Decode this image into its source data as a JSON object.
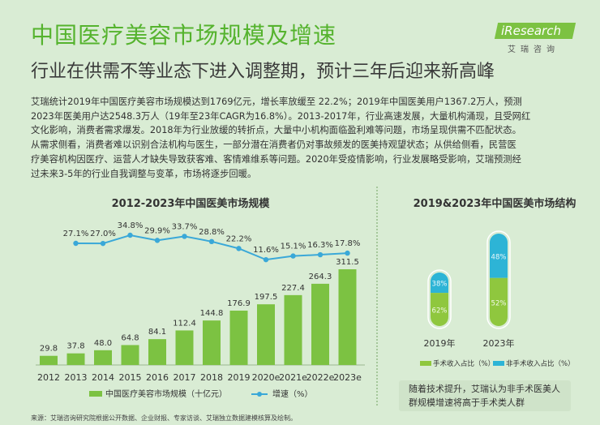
{
  "header": {
    "title": "中国医疗美容市场规模及增速",
    "subtitle": "行业在供需不等业态下进入调整期，预计三年后迎来新高峰",
    "logo_text": "iResearch",
    "logo_cn": "艾瑞咨询"
  },
  "description": [
    "艾瑞统计2019年中国医疗美容市场规模达到1769亿元，增长率放缓至 22.2%；2019年中国医美用户1367.2万人，预测",
    "2023年医美用户达2548.3万人（19年至23年CAGR为16.8%）。2013-2017年，行业高速发展，大量机构涌现，且受网红",
    "文化影响，消费者需求爆发。2018年为行业放缓的转折点，大量中小机构面临盈利难等问题，市场呈现供需不匹配状态。",
    "从需求侧看，消费者难以识别合法机构与医生，一部分潜在消费者仍对事故频发的医美持观望状态；从供给侧看，民营医",
    "疗美容机构因医疗、运营人才缺失导致获客难、客情难维系等问题。2020年受疫情影响，行业发展略受影响，艾瑞预测经",
    "过未来3-5年的行业自我调整与变革，市场将逐步回暖。"
  ],
  "colors": {
    "title": "#55b32e",
    "bar": "#7cc242",
    "line": "#3aa8d8",
    "surgical": "#8fc73e",
    "non_surgical": "#2db4d6",
    "background": "#d9ecd4"
  },
  "chart_data": [
    {
      "type": "bar",
      "title": "2012-2023年中国医美市场规模",
      "categories": [
        "2012",
        "2013",
        "2014",
        "2015",
        "2016",
        "2017",
        "2018",
        "2019",
        "2020e",
        "2021e",
        "2022e",
        "2023e"
      ],
      "series": [
        {
          "name": "中国医疗美容市场规模（十亿元）",
          "type": "bar",
          "values": [
            29.8,
            37.8,
            48.0,
            64.8,
            84.1,
            112.4,
            144.8,
            176.9,
            197.5,
            227.4,
            264.3,
            311.5
          ]
        },
        {
          "name": "增速（%）",
          "type": "line",
          "values": [
            null,
            27.1,
            27.0,
            34.8,
            29.9,
            33.7,
            28.8,
            22.2,
            11.6,
            15.1,
            16.3,
            17.8
          ]
        }
      ],
      "value_labels": [
        "29.8",
        "37.8",
        "48.0",
        "64.8",
        "84.1",
        "112.4",
        "144.8",
        "176.9",
        "197.5",
        "227.4",
        "264.3",
        "311.5"
      ],
      "rate_labels": [
        "",
        "27.1%",
        "27.0%",
        "34.8%",
        "29.9%",
        "33.7%",
        "28.8%",
        "22.2%",
        "11.6%",
        "15.1%",
        "16.3%",
        "17.8%"
      ],
      "legend": "bottom"
    },
    {
      "type": "bar",
      "title": "2019&2023年中国医美市场结构",
      "categories": [
        "2019年",
        "2023年"
      ],
      "series": [
        {
          "name": "手术收入占比（%）",
          "values": [
            62,
            52
          ]
        },
        {
          "name": "非手术收入占比（%）",
          "values": [
            38,
            48
          ]
        }
      ],
      "surgical_labels": [
        "62%",
        "52%"
      ],
      "non_surgical_labels": [
        "38%",
        "48%"
      ],
      "legend": "bottom"
    }
  ],
  "note": "随着技术提升，艾瑞认为非手术医美人群规模增速将高于手术类人群",
  "source": "来源：艾瑞咨询研究院根据公开数据、企业财报、专家访谈、艾瑞独立数据建模核算及绘制。"
}
